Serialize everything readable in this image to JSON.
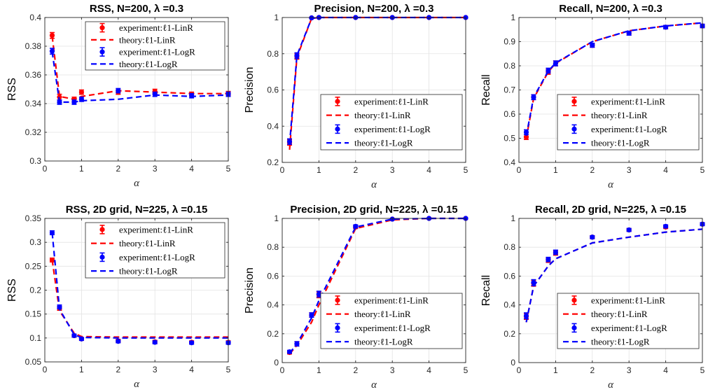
{
  "legend_labels": {
    "exp_lin": "experiment:ℓ1-LinR",
    "th_lin": "theory:ℓ1-LinR",
    "exp_log": "experiment:ℓ1-LogR",
    "th_log": "theory:ℓ1-LogR"
  },
  "colors": {
    "linr": "#ff0000",
    "logr": "#0000ff"
  },
  "chart_data": [
    {
      "type": "line",
      "title": "RSS, N=200, λ =0.3",
      "xlabel": "α",
      "ylabel": "RSS",
      "xlim": [
        0,
        5
      ],
      "ylim": [
        0.3,
        0.4
      ],
      "xticks": [
        0,
        1,
        2,
        3,
        4,
        5
      ],
      "yticks": [
        0.3,
        0.32,
        0.34,
        0.36,
        0.38,
        0.4
      ],
      "ytick_labels": [
        "0.3",
        "0.32",
        "0.34",
        "0.36",
        "0.38",
        "0.4"
      ],
      "grid": true,
      "legend_position": "top-right",
      "x": [
        0.2,
        0.4,
        0.8,
        1,
        2,
        3,
        4,
        5
      ],
      "series": [
        {
          "name": "experiment:ℓ1-LinR",
          "kind": "errorbar",
          "color": "#ff0000",
          "values": [
            0.3875,
            0.3445,
            0.343,
            0.348,
            0.348,
            0.3485,
            0.3465,
            0.347
          ],
          "errors": [
            0.002,
            0.002,
            0.0015,
            0.0015,
            0.0015,
            0.0015,
            0.0015,
            0.0015
          ]
        },
        {
          "name": "theory:ℓ1-LinR",
          "kind": "line",
          "color": "#ff0000",
          "values": [
            0.387,
            0.345,
            0.343,
            0.345,
            0.349,
            0.348,
            0.347,
            0.347
          ]
        },
        {
          "name": "experiment:ℓ1-LogR",
          "kind": "errorbar",
          "color": "#0000ff",
          "values": [
            0.3765,
            0.341,
            0.341,
            0.343,
            0.349,
            0.3465,
            0.3455,
            0.3465
          ],
          "errors": [
            0.002,
            0.0015,
            0.0015,
            0.0015,
            0.0015,
            0.0015,
            0.0015,
            0.0015
          ]
        },
        {
          "name": "theory:ℓ1-LogR",
          "kind": "line",
          "color": "#0000ff",
          "values": [
            0.376,
            0.341,
            0.341,
            0.342,
            0.343,
            0.346,
            0.345,
            0.346
          ]
        }
      ]
    },
    {
      "type": "line",
      "title": "Precision, N=200, λ =0.3",
      "xlabel": "α",
      "ylabel": "Precision",
      "xlim": [
        0,
        5
      ],
      "ylim": [
        0.2,
        1
      ],
      "xticks": [
        0,
        1,
        2,
        3,
        4,
        5
      ],
      "yticks": [
        0.2,
        0.4,
        0.6,
        0.8,
        1
      ],
      "ytick_labels": [
        "0.2",
        "0.4",
        "0.6",
        "0.8",
        "1"
      ],
      "grid": true,
      "legend_position": "bottom-right",
      "x": [
        0.2,
        0.4,
        0.8,
        1,
        2,
        3,
        4,
        5
      ],
      "series": [
        {
          "name": "experiment:ℓ1-LinR",
          "kind": "errorbar",
          "color": "#ff0000",
          "values": [
            0.31,
            0.785,
            0.998,
            1,
            1,
            1,
            1,
            1
          ],
          "errors": [
            0.015,
            0.015,
            0.003,
            0.002,
            0.001,
            0.001,
            0.001,
            0.001
          ]
        },
        {
          "name": "theory:ℓ1-LinR",
          "kind": "line",
          "color": "#ff0000",
          "values": [
            0.27,
            0.78,
            0.995,
            1,
            1,
            1,
            1,
            1
          ]
        },
        {
          "name": "experiment:ℓ1-LogR",
          "kind": "errorbar",
          "color": "#0000ff",
          "values": [
            0.315,
            0.79,
            0.998,
            1,
            1,
            1,
            1,
            1
          ],
          "errors": [
            0.015,
            0.015,
            0.003,
            0.002,
            0.001,
            0.001,
            0.001,
            0.001
          ]
        },
        {
          "name": "theory:ℓ1-LogR",
          "kind": "line",
          "color": "#0000ff",
          "values": [
            0.3,
            0.79,
            0.995,
            1,
            1,
            1,
            1,
            1
          ]
        }
      ]
    },
    {
      "type": "line",
      "title": "Recall, N=200, λ =0.3",
      "xlabel": "α",
      "ylabel": "Recall",
      "xlim": [
        0,
        5
      ],
      "ylim": [
        0.4,
        1
      ],
      "xticks": [
        0,
        1,
        2,
        3,
        4,
        5
      ],
      "yticks": [
        0.4,
        0.5,
        0.6,
        0.7,
        0.8,
        0.9,
        1
      ],
      "ytick_labels": [
        "0.4",
        "0.5",
        "0.6",
        "0.7",
        "0.8",
        "0.9",
        "1"
      ],
      "grid": true,
      "legend_position": "bottom-right",
      "x": [
        0.2,
        0.4,
        0.8,
        1,
        2,
        3,
        4,
        5
      ],
      "series": [
        {
          "name": "experiment:ℓ1-LinR",
          "kind": "errorbar",
          "color": "#ff0000",
          "values": [
            0.505,
            0.67,
            0.775,
            0.81,
            0.885,
            0.935,
            0.96,
            0.965
          ],
          "errors": [
            0.01,
            0.01,
            0.01,
            0.01,
            0.008,
            0.008,
            0.007,
            0.007
          ]
        },
        {
          "name": "theory:ℓ1-LinR",
          "kind": "line",
          "color": "#ff0000",
          "values": [
            0.5,
            0.665,
            0.775,
            0.81,
            0.9,
            0.945,
            0.965,
            0.978
          ]
        },
        {
          "name": "experiment:ℓ1-LogR",
          "kind": "errorbar",
          "color": "#0000ff",
          "values": [
            0.525,
            0.67,
            0.78,
            0.81,
            0.885,
            0.935,
            0.96,
            0.965
          ],
          "errors": [
            0.01,
            0.01,
            0.01,
            0.01,
            0.008,
            0.008,
            0.007,
            0.007
          ]
        },
        {
          "name": "theory:ℓ1-LogR",
          "kind": "line",
          "color": "#0000ff",
          "values": [
            0.51,
            0.67,
            0.778,
            0.812,
            0.9,
            0.945,
            0.965,
            0.978
          ]
        }
      ]
    },
    {
      "type": "line",
      "title": "RSS, 2D grid, N=225, λ =0.15",
      "xlabel": "α",
      "ylabel": "RSS",
      "xlim": [
        0,
        5
      ],
      "ylim": [
        0.05,
        0.35
      ],
      "xticks": [
        0,
        1,
        2,
        3,
        4,
        5
      ],
      "yticks": [
        0.05,
        0.1,
        0.15,
        0.2,
        0.25,
        0.3,
        0.35
      ],
      "ytick_labels": [
        "0.05",
        "0.1",
        "0.15",
        "0.2",
        "0.25",
        "0.3",
        "0.35"
      ],
      "grid": true,
      "legend_position": "top-right",
      "x": [
        0.2,
        0.4,
        0.8,
        1,
        2,
        3,
        4,
        5
      ],
      "series": [
        {
          "name": "experiment:ℓ1-LinR",
          "kind": "errorbar",
          "color": "#ff0000",
          "values": [
            0.263,
            0.162,
            0.105,
            0.098,
            0.094,
            0.092,
            0.091,
            0.091
          ],
          "errors": [
            0.004,
            0.004,
            0.003,
            0.003,
            0.003,
            0.003,
            0.003,
            0.003
          ]
        },
        {
          "name": "theory:ℓ1-LinR",
          "kind": "line",
          "color": "#ff0000",
          "values": [
            0.263,
            0.157,
            0.11,
            0.103,
            0.102,
            0.102,
            0.102,
            0.102
          ]
        },
        {
          "name": "experiment:ℓ1-LogR",
          "kind": "errorbar",
          "color": "#0000ff",
          "values": [
            0.32,
            0.165,
            0.105,
            0.098,
            0.093,
            0.091,
            0.09,
            0.09
          ],
          "errors": [
            0.004,
            0.004,
            0.003,
            0.003,
            0.003,
            0.003,
            0.003,
            0.003
          ]
        },
        {
          "name": "theory:ℓ1-LogR",
          "kind": "line",
          "color": "#0000ff",
          "values": [
            0.32,
            0.16,
            0.107,
            0.101,
            0.1,
            0.1,
            0.1,
            0.1
          ]
        }
      ]
    },
    {
      "type": "line",
      "title": "Precision, 2D grid, N=225, λ =0.15",
      "xlabel": "α",
      "ylabel": "Precision",
      "xlim": [
        0,
        5
      ],
      "ylim": [
        0,
        1
      ],
      "xticks": [
        0,
        1,
        2,
        3,
        4,
        5
      ],
      "yticks": [
        0,
        0.2,
        0.4,
        0.6,
        0.8,
        1
      ],
      "ytick_labels": [
        "0",
        "0.2",
        "0.4",
        "0.6",
        "0.8",
        "1"
      ],
      "grid": true,
      "legend_position": "bottom-right",
      "x": [
        0.2,
        0.4,
        0.8,
        1,
        2,
        3,
        4,
        5
      ],
      "series": [
        {
          "name": "experiment:ℓ1-LinR",
          "kind": "errorbar",
          "color": "#ff0000",
          "values": [
            0.07,
            0.13,
            0.33,
            0.47,
            0.94,
            0.995,
            1,
            1
          ],
          "errors": [
            0.01,
            0.015,
            0.015,
            0.02,
            0.01,
            0.003,
            0.002,
            0.002
          ]
        },
        {
          "name": "theory:ℓ1-LinR",
          "kind": "line",
          "color": "#ff0000",
          "values": [
            0.06,
            0.12,
            0.28,
            0.4,
            0.93,
            0.99,
            1,
            1
          ]
        },
        {
          "name": "experiment:ℓ1-LogR",
          "kind": "errorbar",
          "color": "#0000ff",
          "values": [
            0.075,
            0.13,
            0.33,
            0.475,
            0.945,
            0.995,
            1,
            1
          ],
          "errors": [
            0.01,
            0.015,
            0.015,
            0.02,
            0.01,
            0.003,
            0.002,
            0.002
          ]
        },
        {
          "name": "theory:ℓ1-LogR",
          "kind": "line",
          "color": "#0000ff",
          "values": [
            0.065,
            0.13,
            0.31,
            0.43,
            0.94,
            0.995,
            1,
            1
          ]
        }
      ]
    },
    {
      "type": "line",
      "title": "Recall, 2D grid, N=225, λ =0.15",
      "xlabel": "α",
      "ylabel": "Recall",
      "xlim": [
        0,
        5
      ],
      "ylim": [
        0,
        1
      ],
      "xticks": [
        0,
        1,
        2,
        3,
        4,
        5
      ],
      "yticks": [
        0,
        0.2,
        0.4,
        0.6,
        0.8,
        1
      ],
      "ytick_labels": [
        "0",
        "0.2",
        "0.4",
        "0.6",
        "0.8",
        "1"
      ],
      "grid": true,
      "legend_position": "bottom-right",
      "x": [
        0.2,
        0.4,
        0.8,
        1,
        2,
        3,
        4,
        5
      ],
      "series": [
        {
          "name": "experiment:ℓ1-LinR",
          "kind": "errorbar",
          "color": "#ff0000",
          "values": [
            0.32,
            0.55,
            0.71,
            0.76,
            0.87,
            0.92,
            0.94,
            0.96
          ],
          "errors": [
            0.02,
            0.02,
            0.015,
            0.015,
            0.01,
            0.01,
            0.01,
            0.01
          ]
        },
        {
          "name": "theory:ℓ1-LinR",
          "kind": "line",
          "color": "#ff0000",
          "values": [
            0.28,
            0.53,
            0.67,
            0.72,
            0.83,
            0.87,
            0.905,
            0.925
          ]
        },
        {
          "name": "experiment:ℓ1-LogR",
          "kind": "errorbar",
          "color": "#0000ff",
          "values": [
            0.325,
            0.555,
            0.715,
            0.765,
            0.87,
            0.92,
            0.945,
            0.96
          ],
          "errors": [
            0.02,
            0.02,
            0.015,
            0.015,
            0.01,
            0.01,
            0.01,
            0.01
          ]
        },
        {
          "name": "theory:ℓ1-LogR",
          "kind": "line",
          "color": "#0000ff",
          "values": [
            0.28,
            0.53,
            0.67,
            0.72,
            0.83,
            0.87,
            0.905,
            0.925
          ]
        }
      ]
    }
  ]
}
